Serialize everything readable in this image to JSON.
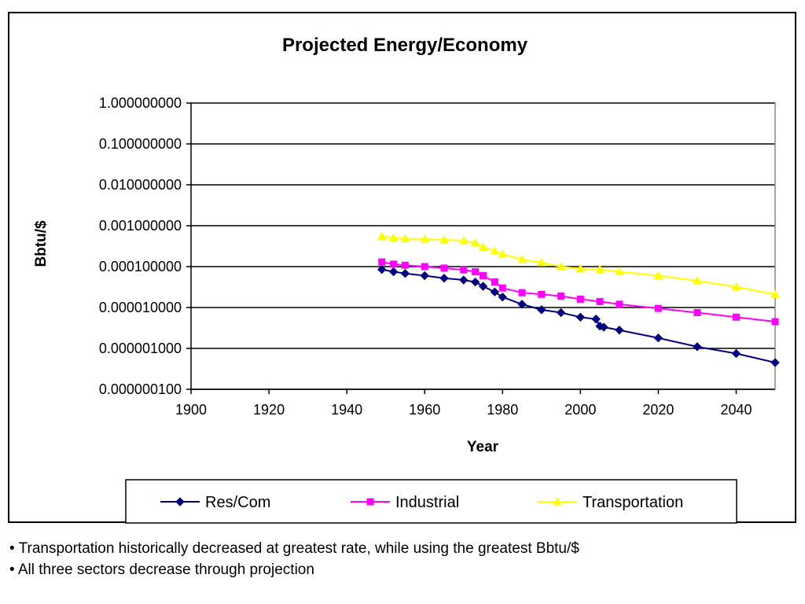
{
  "chart_data": {
    "type": "line",
    "title": "Projected Energy/Economy",
    "xlabel": "Year",
    "ylabel": "Bbtu/$",
    "y_scale": "log",
    "xlim": [
      1900,
      2050
    ],
    "ylim": [
      1e-07,
      1
    ],
    "x_ticks": [
      "1900",
      "1920",
      "1940",
      "1960",
      "1980",
      "2000",
      "2020",
      "2040"
    ],
    "y_ticks": [
      "1.000000000",
      "0.100000000",
      "0.010000000",
      "0.001000000",
      "0.000100000",
      "0.000010000",
      "0.000001000",
      "0.000000100"
    ],
    "grid": "horizontal major gridlines",
    "legend_position": "bottom",
    "series": [
      {
        "name": "Res/Com",
        "color": "#000080",
        "marker": "diamond",
        "x": [
          1949,
          1952,
          1955,
          1960,
          1965,
          1970,
          1973,
          1975,
          1978,
          1980,
          1985,
          1990,
          1995,
          2000,
          2004,
          2005,
          2006,
          2010,
          2020,
          2030,
          2040,
          2050
        ],
        "values": [
          8.5e-05,
          7.5e-05,
          6.8e-05,
          6e-05,
          5.2e-05,
          4.7e-05,
          4.2e-05,
          3.3e-05,
          2.4e-05,
          1.8e-05,
          1.2e-05,
          8.8e-06,
          7.5e-06,
          5.8e-06,
          5.2e-06,
          3.5e-06,
          3.3e-06,
          2.8e-06,
          1.8e-06,
          1.1e-06,
          7.5e-07,
          4.5e-07
        ]
      },
      {
        "name": "Industrial",
        "color": "#ff00ff",
        "marker": "square",
        "x": [
          1949,
          1952,
          1955,
          1960,
          1965,
          1970,
          1973,
          1975,
          1978,
          1980,
          1985,
          1990,
          1995,
          2000,
          2005,
          2010,
          2020,
          2030,
          2040,
          2050
        ],
        "values": [
          0.00013,
          0.000115,
          0.000108,
          0.0001,
          9.2e-05,
          8.3e-05,
          7.5e-05,
          6e-05,
          4.2e-05,
          3e-05,
          2.3e-05,
          2.1e-05,
          1.9e-05,
          1.6e-05,
          1.4e-05,
          1.2e-05,
          9.5e-06,
          7.5e-06,
          5.8e-06,
          4.5e-06
        ]
      },
      {
        "name": "Transportation",
        "color": "#ffff00",
        "marker": "triangle",
        "x": [
          1949,
          1952,
          1955,
          1960,
          1965,
          1970,
          1973,
          1975,
          1978,
          1980,
          1985,
          1990,
          1995,
          2000,
          2005,
          2010,
          2020,
          2030,
          2040,
          2050
        ],
        "values": [
          0.00055,
          0.0005,
          0.00048,
          0.00047,
          0.00045,
          0.00043,
          0.00038,
          0.0003,
          0.00024,
          0.0002,
          0.00015,
          0.000125,
          0.0001,
          8.8e-05,
          8.5e-05,
          7.5e-05,
          6e-05,
          4.5e-05,
          3.2e-05,
          2.1e-05
        ]
      }
    ]
  },
  "notes": [
    "• Transportation historically decreased at greatest rate, while using the greatest Bbtu/$",
    "• All three sectors decrease through projection"
  ]
}
